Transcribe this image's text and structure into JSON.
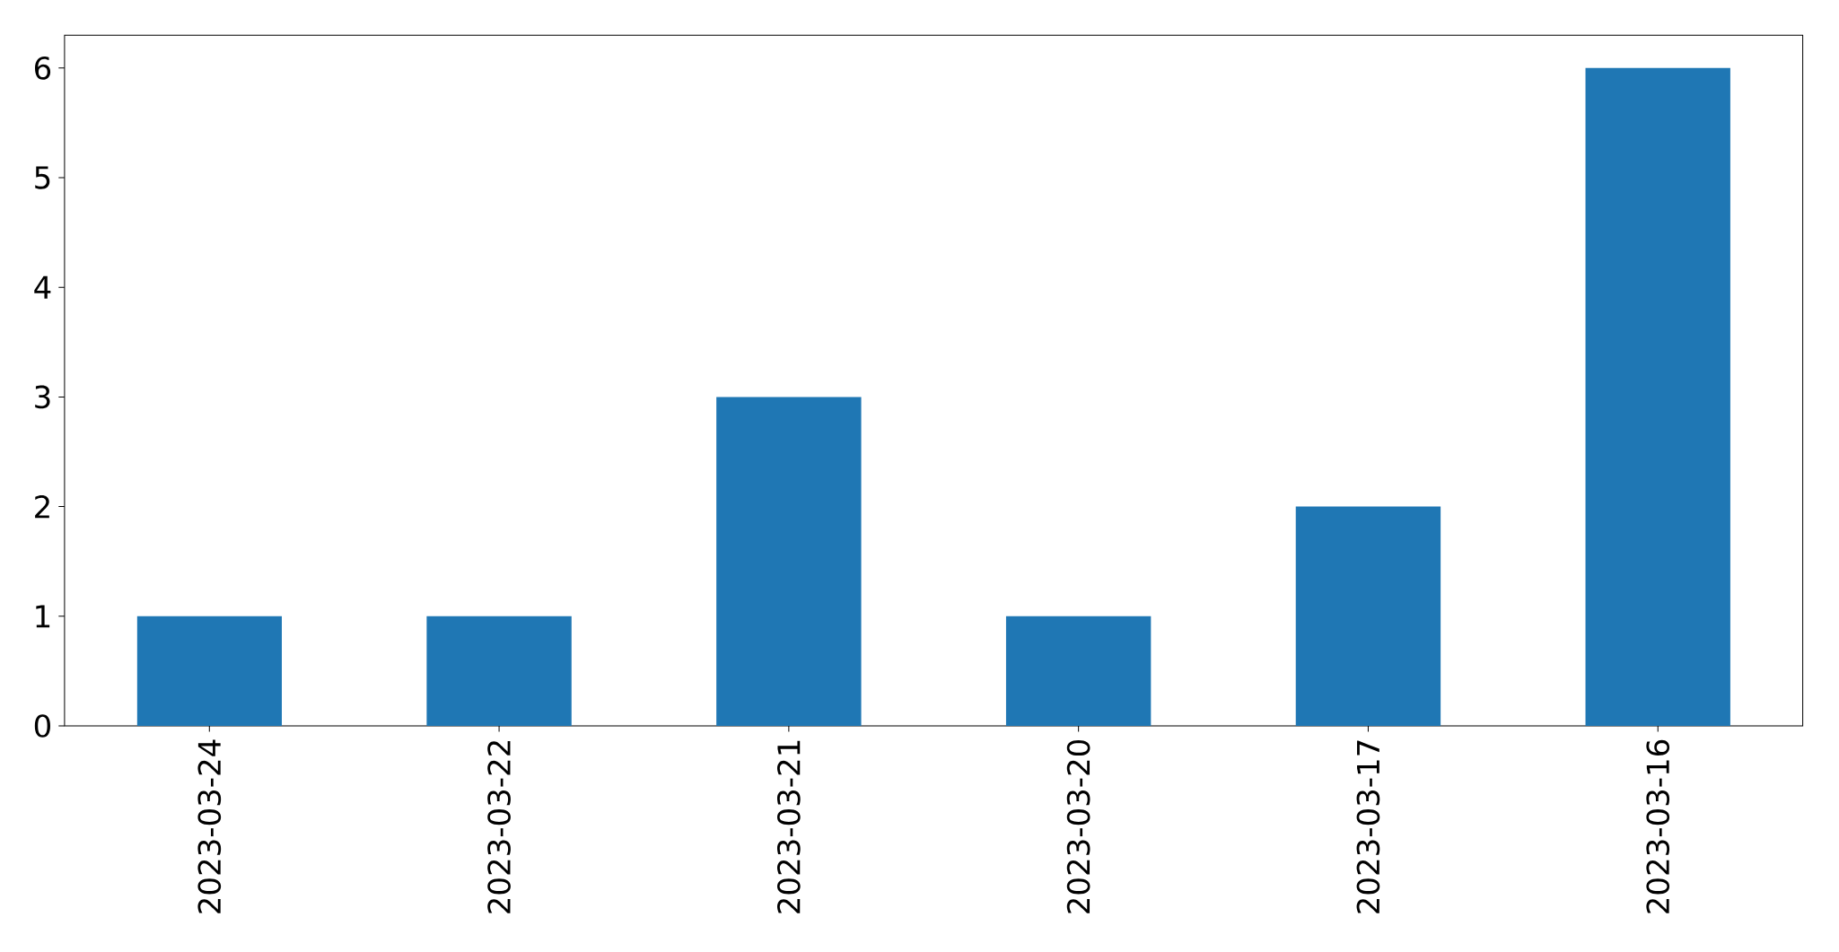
{
  "chart_data": {
    "type": "bar",
    "categories": [
      "2023-03-24",
      "2023-03-22",
      "2023-03-21",
      "2023-03-20",
      "2023-03-17",
      "2023-03-16"
    ],
    "values": [
      1,
      1,
      3,
      1,
      2,
      6
    ],
    "color": "#1f77b4",
    "ylim": [
      0,
      6.3
    ],
    "yticks": [
      0,
      1,
      2,
      3,
      4,
      5,
      6
    ]
  }
}
